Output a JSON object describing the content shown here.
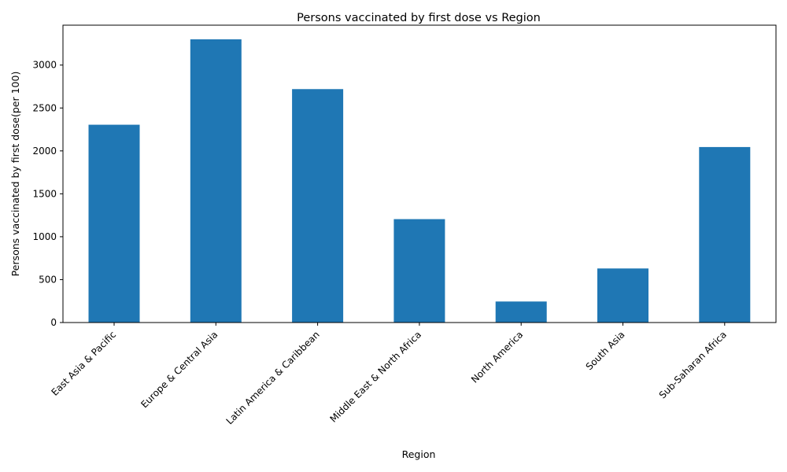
{
  "chart_data": {
    "type": "bar",
    "title": "Persons vaccinated by first dose vs Region",
    "xlabel": "Region",
    "ylabel": "Persons vaccinated by first dose(per 100)",
    "categories": [
      "East Asia & Pacific",
      "Europe & Central Asia",
      "Latin America & Caribbean",
      "Middle East & North Africa",
      "North America",
      "South Asia",
      "Sub-Saharan Africa"
    ],
    "values": [
      2305,
      3300,
      2720,
      1205,
      245,
      630,
      2045
    ],
    "ylim": [
      0,
      3465
    ],
    "yticks": [
      0,
      500,
      1000,
      1500,
      2000,
      2500,
      3000
    ],
    "ytick_labels": [
      "0",
      "500",
      "1000",
      "1500",
      "2000",
      "2500",
      "3000"
    ],
    "bar_color": "#1f77b4",
    "grid": false,
    "legend": "none"
  }
}
